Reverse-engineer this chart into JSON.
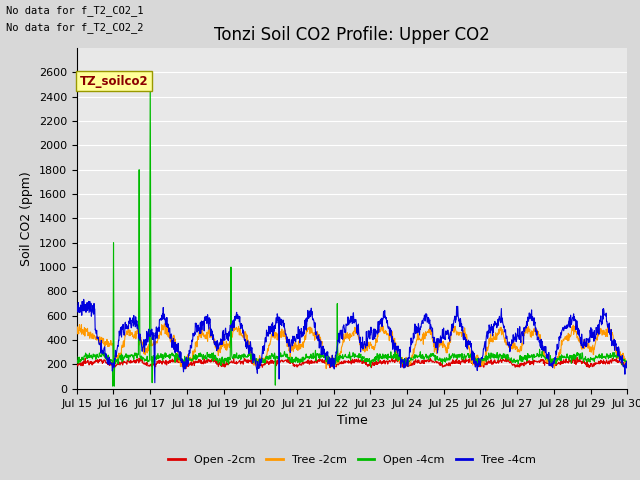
{
  "title": "Tonzi Soil CO2 Profile: Upper CO2",
  "ylabel": "Soil CO2 (ppm)",
  "xlabel": "Time",
  "text_no_data_1": "No data for f_T2_CO2_1",
  "text_no_data_2": "No data for f_T2_CO2_2",
  "legend_label": "TZ_soilco2",
  "ylim": [
    0,
    2800
  ],
  "yticks": [
    0,
    200,
    400,
    600,
    800,
    1000,
    1200,
    1400,
    1600,
    1800,
    2000,
    2200,
    2400,
    2600
  ],
  "series_labels": [
    "Open -2cm",
    "Tree -2cm",
    "Open -4cm",
    "Tree -4cm"
  ],
  "series_colors": [
    "#dd0000",
    "#ff9900",
    "#00bb00",
    "#0000dd"
  ],
  "background_color": "#d8d8d8",
  "plot_bg_color": "#e8e8e8",
  "grid_color": "#ffffff",
  "title_fontsize": 12,
  "axis_fontsize": 9,
  "tick_fontsize": 8,
  "n_points": 1440,
  "x_start": 15.0,
  "x_end": 30.0,
  "xtick_positions": [
    15,
    16,
    17,
    18,
    19,
    20,
    21,
    22,
    23,
    24,
    25,
    26,
    27,
    28,
    29,
    30
  ],
  "xtick_labels": [
    "Jul 15",
    "Jul 16",
    "Jul 17",
    "Jul 18",
    "Jul 19",
    "Jul 20",
    "Jul 21",
    "Jul 22",
    "Jul 23",
    "Jul 24",
    "Jul 25",
    "Jul 26",
    "Jul 27",
    "Jul 28",
    "Jul 29",
    "Jul 30"
  ]
}
